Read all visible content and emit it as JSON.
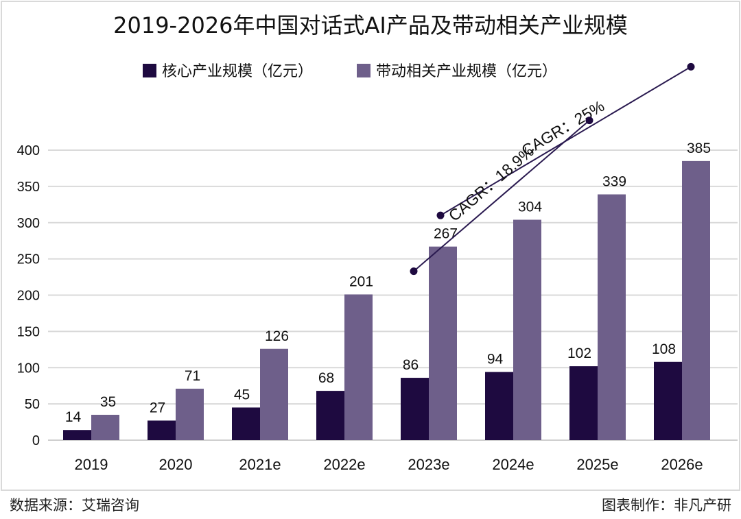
{
  "chart_data": {
    "type": "bar",
    "title": "2019-2026年中国对话式AI产品及带动相关产业规模",
    "categories": [
      "2019",
      "2020",
      "2021e",
      "2022e",
      "2023e",
      "2024e",
      "2025e",
      "2026e"
    ],
    "series": [
      {
        "name": "核心产业规模（亿元）",
        "color": "#1e0a40",
        "values": [
          14,
          27,
          45,
          68,
          86,
          94,
          102,
          108
        ]
      },
      {
        "name": "带动相关产业规模（亿元）",
        "color": "#6e5f8a",
        "values": [
          35,
          71,
          126,
          201,
          267,
          304,
          339,
          385
        ]
      }
    ],
    "ylim": [
      0,
      400
    ],
    "yticks": [
      0,
      50,
      100,
      150,
      200,
      250,
      300,
      350,
      400
    ],
    "grid": true,
    "legend": "top",
    "annotations": [
      {
        "text": "CAGR：25%",
        "from_category": "2021e",
        "to_category": "2026e",
        "from_y": 310,
        "to_y": 515
      },
      {
        "text": "CAGR：18.9%",
        "from_category": "2021e",
        "to_category": "2025e",
        "from_y": 233,
        "to_y": 441
      }
    ]
  },
  "footer": {
    "source": "数据来源：艾瑞咨询",
    "credit": "图表制作：非凡产研"
  }
}
